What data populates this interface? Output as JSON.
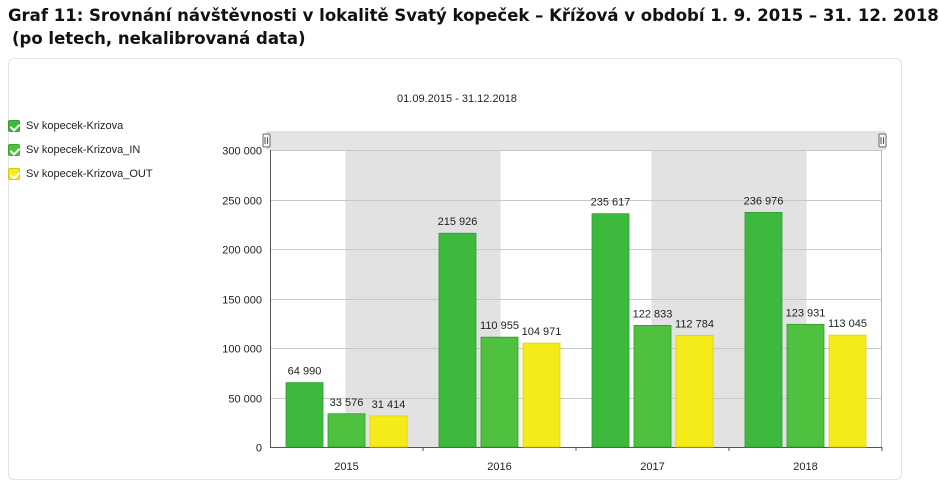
{
  "caption": {
    "line1": "Graf 11: Srovnání návštěvnosti v lokalitě Svatý kopeček – Křížová v období 1. 9. 2015 – 31. 12. 2018",
    "line2": "(po letech, nekalibrovaná data)"
  },
  "date_range": "01.09.2015 - 31.12.2018",
  "legend": [
    {
      "label": "Sv kopecek-Krizova",
      "color": "#3db93d"
    },
    {
      "label": "Sv kopecek-Krizova_IN",
      "color": "#4fc13f"
    },
    {
      "label": "Sv kopecek-Krizova_OUT",
      "color": "#f5ea1a"
    }
  ],
  "chart_data": {
    "type": "bar",
    "categories": [
      "2015",
      "2016",
      "2017",
      "2018"
    ],
    "series": [
      {
        "name": "Sv kopecek-Krizova",
        "values": [
          64990,
          215926,
          235617,
          236976
        ],
        "labels": [
          "64 990",
          "215 926",
          "235 617",
          "236 976"
        ],
        "color": "#3db93d"
      },
      {
        "name": "Sv kopecek-Krizova_IN",
        "values": [
          33576,
          110955,
          122833,
          123931
        ],
        "labels": [
          "33 576",
          "110 955",
          "122 833",
          "123 931"
        ],
        "color": "#4fc13f"
      },
      {
        "name": "Sv kopecek-Krizova_OUT",
        "values": [
          31414,
          104971,
          112784,
          113045
        ],
        "labels": [
          "31 414",
          "104 971",
          "112 784",
          "113 045"
        ],
        "color": "#f5ea1a"
      }
    ],
    "yticks": [
      0,
      50000,
      100000,
      150000,
      200000,
      250000,
      300000
    ],
    "ytick_labels": [
      "0",
      "50 000",
      "100 000",
      "150 000",
      "200 000",
      "250 000",
      "300 000"
    ],
    "ylim": [
      0,
      300000
    ],
    "alternate_band_color": "#e2e2e2",
    "grid": true,
    "legend_position": "left"
  }
}
